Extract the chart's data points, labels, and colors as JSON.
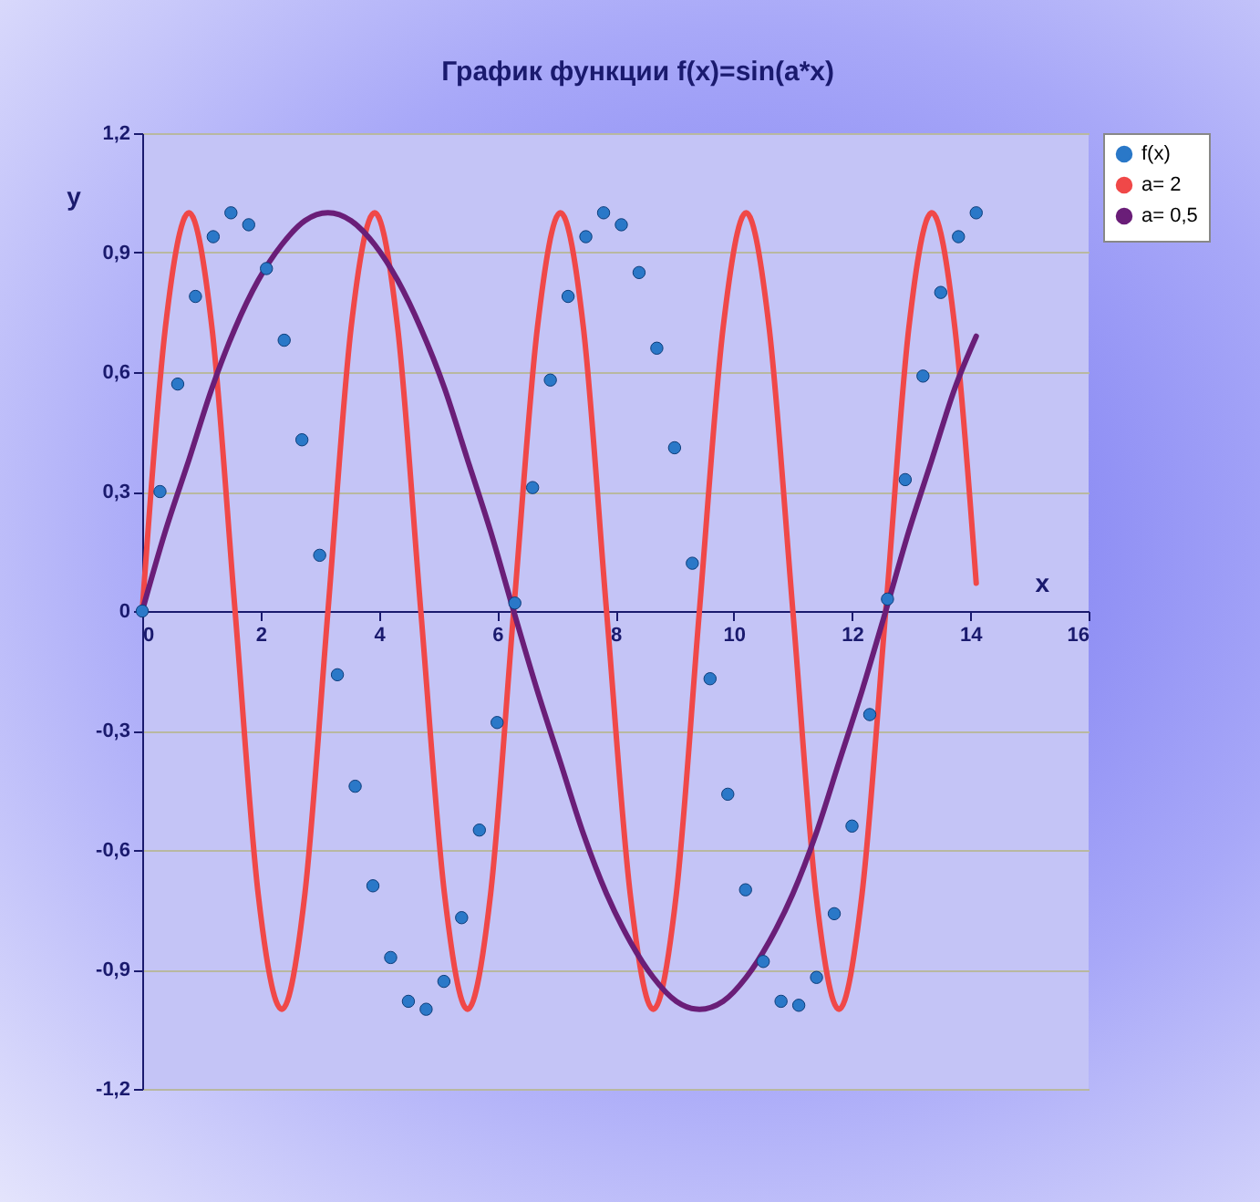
{
  "chart_data": {
    "type": "scatter",
    "title": "График функции f(x)=sin(a*x)",
    "xlabel": "x",
    "ylabel": "y",
    "xlim": [
      0,
      16
    ],
    "xticks": [
      0,
      2,
      4,
      6,
      8,
      10,
      12,
      14,
      16
    ],
    "ylim": [
      -1.2,
      1.2
    ],
    "yticks": [
      {
        "value": -1.2,
        "label": "-1,2"
      },
      {
        "value": -0.9,
        "label": "-0,9"
      },
      {
        "value": -0.6,
        "label": "-0,6"
      },
      {
        "value": -0.3,
        "label": "-0,3"
      },
      0,
      {
        "value": 0.3,
        "label": "0,3"
      },
      {
        "value": 0.6,
        "label": "0,6"
      },
      {
        "value": 0.9,
        "label": "0,9"
      },
      {
        "value": 1.2,
        "label": "1,2"
      }
    ],
    "grid": "y",
    "legend": "right",
    "series": [
      {
        "name": "f(x)",
        "marker": "circle",
        "color": "#2a78c8",
        "x": [
          0,
          0.3,
          0.6,
          0.9,
          1.2,
          1.5,
          1.8,
          2.1,
          2.4,
          2.7,
          3.0,
          3.3,
          3.6,
          3.9,
          4.2,
          4.5,
          4.8,
          5.1,
          5.4,
          5.7,
          6.0,
          6.3,
          6.6,
          6.9,
          7.2,
          7.5,
          7.8,
          8.1,
          8.4,
          8.7,
          9.0,
          9.3,
          9.6,
          9.9,
          10.2,
          10.5,
          10.8,
          11.1,
          11.4,
          11.7,
          12.0,
          12.3,
          12.6,
          12.9,
          13.2,
          13.5,
          13.8,
          14.1
        ],
        "values": [
          0,
          0.3,
          0.57,
          0.79,
          0.94,
          1.0,
          0.97,
          0.86,
          0.68,
          0.43,
          0.14,
          -0.16,
          -0.44,
          -0.69,
          -0.87,
          -0.98,
          -1.0,
          -0.93,
          -0.77,
          -0.55,
          -0.28,
          0.02,
          0.31,
          0.58,
          0.79,
          0.94,
          1.0,
          0.97,
          0.85,
          0.66,
          0.41,
          0.12,
          -0.17,
          -0.46,
          -0.7,
          -0.88,
          -0.98,
          -0.99,
          -0.92,
          -0.76,
          -0.54,
          -0.26,
          0.03,
          0.33,
          0.59,
          0.8,
          0.94,
          1.0
        ]
      },
      {
        "name": "a= 2",
        "type": "line",
        "marker": "none",
        "color": "#f04848",
        "x": [
          0,
          0.39,
          0.79,
          1.18,
          1.57,
          1.96,
          2.36,
          2.75,
          3.14,
          3.53,
          3.93,
          4.32,
          4.71,
          5.11,
          5.5,
          5.89,
          6.28,
          6.68,
          7.07,
          7.46,
          7.85,
          8.25,
          8.64,
          9.03,
          9.42,
          9.82,
          10.21,
          10.6,
          11.0,
          11.39,
          11.78,
          12.17,
          12.57,
          12.96,
          13.35,
          13.74,
          14.1
        ],
        "values": [
          0,
          0.71,
          1,
          0.71,
          0,
          -0.71,
          -1,
          -0.71,
          0,
          0.71,
          1,
          0.71,
          0,
          -0.71,
          -1,
          -0.71,
          0,
          0.71,
          1,
          0.71,
          0,
          -0.71,
          -1,
          -0.71,
          0,
          0.71,
          1,
          0.71,
          0,
          -0.71,
          -1,
          -0.71,
          0,
          0.71,
          1,
          0.71,
          0.07
        ]
      },
      {
        "name": "a= 0,5",
        "type": "line",
        "marker": "none",
        "color": "#6a1e78",
        "x": [
          0,
          0.39,
          0.79,
          1.18,
          1.57,
          1.96,
          2.36,
          2.75,
          3.14,
          3.53,
          3.93,
          4.32,
          4.71,
          5.11,
          5.5,
          5.89,
          6.28,
          6.68,
          7.07,
          7.46,
          7.85,
          8.25,
          8.64,
          9.03,
          9.42,
          9.82,
          10.21,
          10.6,
          11.0,
          11.39,
          11.78,
          12.17,
          12.57,
          12.96,
          13.35,
          13.74,
          14.1
        ],
        "values": [
          0,
          0.2,
          0.38,
          0.56,
          0.71,
          0.83,
          0.92,
          0.98,
          1,
          0.98,
          0.92,
          0.83,
          0.71,
          0.56,
          0.38,
          0.2,
          0,
          -0.2,
          -0.38,
          -0.56,
          -0.71,
          -0.83,
          -0.92,
          -0.98,
          -1,
          -0.98,
          -0.92,
          -0.83,
          -0.71,
          -0.56,
          -0.38,
          -0.2,
          0,
          0.2,
          0.38,
          0.56,
          0.69
        ]
      }
    ]
  }
}
